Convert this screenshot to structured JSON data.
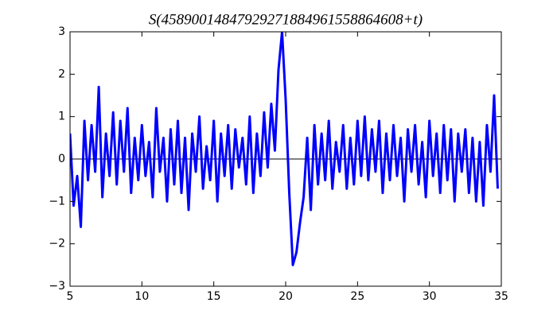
{
  "chart_data": {
    "type": "line",
    "title": "S(45890014847929271884961558864608+t)",
    "x": [
      5,
      5.25,
      5.5,
      5.75,
      6,
      6.25,
      6.5,
      6.75,
      7,
      7.25,
      7.5,
      7.75,
      8,
      8.25,
      8.5,
      8.75,
      9,
      9.25,
      9.5,
      9.75,
      10,
      10.25,
      10.5,
      10.75,
      11,
      11.25,
      11.5,
      11.75,
      12,
      12.25,
      12.5,
      12.75,
      13,
      13.25,
      13.5,
      13.75,
      14,
      14.25,
      14.5,
      14.75,
      15,
      15.25,
      15.5,
      15.75,
      16,
      16.25,
      16.5,
      16.75,
      17,
      17.25,
      17.5,
      17.75,
      18,
      18.25,
      18.5,
      18.75,
      19,
      19.25,
      19.5,
      19.75,
      20,
      20.25,
      20.5,
      20.75,
      21,
      21.25,
      21.5,
      21.75,
      22,
      22.25,
      22.5,
      22.75,
      23,
      23.25,
      23.5,
      23.75,
      24,
      24.25,
      24.5,
      24.75,
      25,
      25.25,
      25.5,
      25.75,
      26,
      26.25,
      26.5,
      26.75,
      27,
      27.25,
      27.5,
      27.75,
      28,
      28.25,
      28.5,
      28.75,
      29,
      29.25,
      29.5,
      29.75,
      30,
      30.25,
      30.5,
      30.75,
      31,
      31.25,
      31.5,
      31.75,
      32,
      32.25,
      32.5,
      32.75,
      33,
      33.25,
      33.5,
      33.75,
      34,
      34.25,
      34.5,
      34.75
    ],
    "values": [
      0.6,
      -1.1,
      -0.4,
      -1.6,
      0.9,
      -0.5,
      0.8,
      -0.3,
      1.7,
      -0.9,
      0.6,
      -0.4,
      1.1,
      -0.6,
      0.9,
      -0.3,
      1.2,
      -0.8,
      0.5,
      -0.5,
      0.8,
      -0.4,
      0.4,
      -0.9,
      1.2,
      -0.3,
      0.5,
      -1.0,
      0.7,
      -0.6,
      0.9,
      -0.8,
      0.5,
      -1.2,
      0.6,
      -0.3,
      1.0,
      -0.7,
      0.3,
      -0.5,
      0.9,
      -1.0,
      0.6,
      -0.4,
      0.8,
      -0.7,
      0.7,
      -0.2,
      0.5,
      -0.6,
      1.0,
      -0.8,
      0.6,
      -0.4,
      1.1,
      -0.2,
      1.3,
      0.2,
      2.1,
      3.0,
      1.4,
      -0.8,
      -2.5,
      -2.2,
      -1.5,
      -0.9,
      0.5,
      -1.2,
      0.8,
      -0.6,
      0.6,
      -0.5,
      0.9,
      -0.7,
      0.4,
      -0.3,
      0.8,
      -0.7,
      0.5,
      -0.6,
      0.9,
      -0.4,
      1.0,
      -0.5,
      0.7,
      -0.3,
      0.9,
      -0.8,
      0.6,
      -0.5,
      0.8,
      -0.4,
      0.5,
      -1.0,
      0.7,
      -0.3,
      0.8,
      -0.6,
      0.4,
      -0.9,
      0.9,
      -0.4,
      0.6,
      -0.8,
      0.8,
      -0.5,
      0.7,
      -1.0,
      0.6,
      -0.3,
      0.7,
      -0.8,
      0.5,
      -1.0,
      0.4,
      -1.1,
      0.8,
      -0.3,
      1.5,
      -0.7
    ],
    "color": "#0000ff",
    "hline": 0,
    "xlim": [
      5,
      35
    ],
    "xticks": [
      5,
      10,
      15,
      20,
      25,
      30,
      35
    ],
    "ylim": [
      -3,
      3
    ],
    "yticks": [
      {
        "value": -3,
        "label": "−3"
      },
      {
        "value": -2,
        "label": "−2"
      },
      {
        "value": -1,
        "label": "−1"
      },
      0,
      1,
      2,
      3
    ]
  }
}
